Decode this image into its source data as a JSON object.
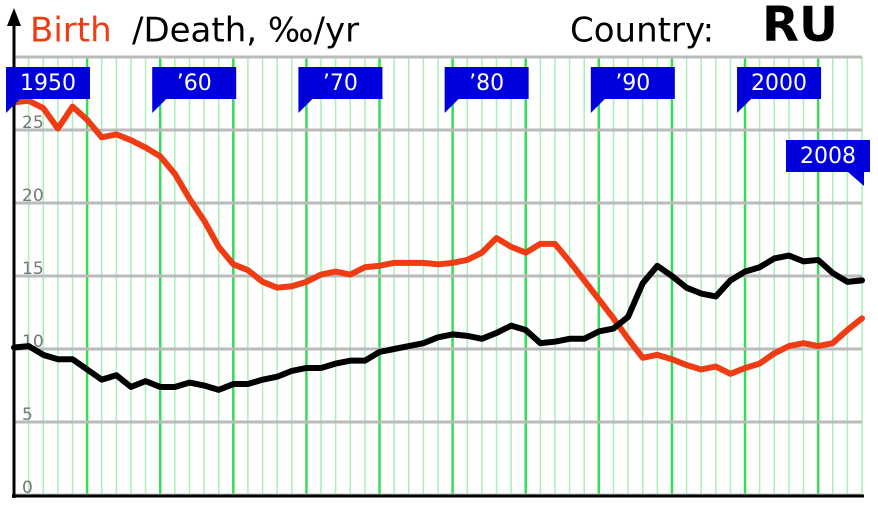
{
  "chart_data": {
    "type": "line",
    "title": "Country:",
    "subtitle": "RU",
    "x": [
      1950,
      1951,
      1952,
      1953,
      1954,
      1955,
      1956,
      1957,
      1958,
      1959,
      1960,
      1961,
      1962,
      1963,
      1964,
      1965,
      1966,
      1967,
      1968,
      1969,
      1970,
      1971,
      1972,
      1973,
      1974,
      1975,
      1976,
      1977,
      1978,
      1979,
      1980,
      1981,
      1982,
      1983,
      1984,
      1985,
      1986,
      1987,
      1988,
      1989,
      1990,
      1991,
      1992,
      1993,
      1994,
      1995,
      1996,
      1997,
      1998,
      1999,
      2000,
      2001,
      2002,
      2003,
      2004,
      2005,
      2006,
      2007,
      2008
    ],
    "series": [
      {
        "name": "Birth",
        "color": "#f03c14",
        "values": [
          26.9,
          27.0,
          26.5,
          25.1,
          26.6,
          25.7,
          24.5,
          24.7,
          24.3,
          23.8,
          23.2,
          22.0,
          20.3,
          18.8,
          17.0,
          15.8,
          15.4,
          14.6,
          14.2,
          14.3,
          14.6,
          15.1,
          15.3,
          15.1,
          15.6,
          15.7,
          15.9,
          15.9,
          15.9,
          15.8,
          15.9,
          16.1,
          16.6,
          17.6,
          17.0,
          16.6,
          17.2,
          17.2,
          16.0,
          14.7,
          13.4,
          12.1,
          10.7,
          9.4,
          9.6,
          9.3,
          8.9,
          8.6,
          8.8,
          8.3,
          8.7,
          9.0,
          9.7,
          10.2,
          10.4,
          10.2,
          10.4,
          11.3,
          12.1
        ]
      },
      {
        "name": "/Death, ‰/yr",
        "color": "#000000",
        "values": [
          10.1,
          10.2,
          9.6,
          9.3,
          9.3,
          8.6,
          7.9,
          8.2,
          7.4,
          7.8,
          7.4,
          7.4,
          7.7,
          7.5,
          7.2,
          7.6,
          7.6,
          7.9,
          8.1,
          8.5,
          8.7,
          8.7,
          9.0,
          9.2,
          9.2,
          9.8,
          10.0,
          10.2,
          10.4,
          10.8,
          11.0,
          10.9,
          10.7,
          11.1,
          11.6,
          11.3,
          10.4,
          10.5,
          10.7,
          10.7,
          11.2,
          11.4,
          12.2,
          14.5,
          15.7,
          15.0,
          14.2,
          13.8,
          13.6,
          14.7,
          15.3,
          15.6,
          16.2,
          16.4,
          16.0,
          16.1,
          15.2,
          14.6,
          14.7
        ]
      }
    ],
    "xlim": [
      1950,
      2008
    ],
    "xticks": [
      1950,
      {
        "value": 1960,
        "label": "’60"
      },
      {
        "value": 1970,
        "label": "’70"
      },
      {
        "value": 1980,
        "label": "’80"
      },
      {
        "value": 1990,
        "label": "’90"
      },
      2000,
      2008
    ],
    "ylim": [
      0,
      30
    ],
    "yticks": [
      0,
      5,
      10,
      15,
      20,
      25
    ],
    "grid": true
  }
}
